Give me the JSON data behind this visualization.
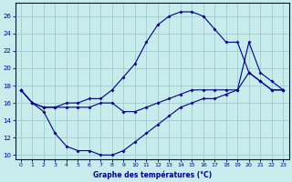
{
  "min_x": [
    0,
    1,
    2,
    3,
    4,
    5,
    6,
    7,
    8,
    9,
    10,
    11,
    12,
    13,
    14,
    15,
    16,
    17,
    18,
    19,
    20,
    21,
    22,
    23
  ],
  "min_y": [
    17.5,
    16.0,
    15.0,
    12.5,
    11.0,
    10.5,
    10.5,
    10.0,
    10.0,
    10.5,
    11.5,
    12.5,
    13.5,
    14.5,
    15.5,
    16.0,
    16.5,
    16.5,
    17.0,
    17.5,
    19.5,
    18.5,
    17.5,
    17.5
  ],
  "max_x": [
    0,
    1,
    2,
    3,
    4,
    5,
    6,
    7,
    8,
    9,
    10,
    11,
    12,
    13,
    14,
    15,
    16,
    17,
    18,
    19,
    20,
    21,
    22,
    23
  ],
  "max_y": [
    17.5,
    16.0,
    15.5,
    15.5,
    16.0,
    16.0,
    16.5,
    16.5,
    17.5,
    19.0,
    20.5,
    23.0,
    25.0,
    26.0,
    26.5,
    26.5,
    26.0,
    24.5,
    23.0,
    23.0,
    19.5,
    18.5,
    17.5,
    17.5
  ],
  "cur_x": [
    0,
    1,
    2,
    3,
    4,
    5,
    6,
    7,
    8,
    9,
    10,
    11,
    12,
    13,
    14,
    15,
    16,
    17,
    18,
    19,
    20,
    21,
    22,
    23
  ],
  "cur_y": [
    17.5,
    16.0,
    15.5,
    15.5,
    15.5,
    15.5,
    15.5,
    16.0,
    16.0,
    15.0,
    15.0,
    15.5,
    16.0,
    16.5,
    17.0,
    17.5,
    17.5,
    17.5,
    17.5,
    17.5,
    23.0,
    19.5,
    18.5,
    17.5
  ],
  "xlabel": "Graphe des températures (°C)",
  "bg_color": "#c8ecec",
  "grid_color": "#9ecece",
  "line_color": "#00008b",
  "markersize": 2,
  "ylim": [
    9.5,
    27.5
  ],
  "xlim": [
    -0.5,
    23.5
  ],
  "yticks": [
    10,
    12,
    14,
    16,
    18,
    20,
    22,
    24,
    26
  ],
  "xticks": [
    0,
    1,
    2,
    3,
    4,
    5,
    6,
    7,
    8,
    9,
    10,
    11,
    12,
    13,
    14,
    15,
    16,
    17,
    18,
    19,
    20,
    21,
    22,
    23
  ]
}
